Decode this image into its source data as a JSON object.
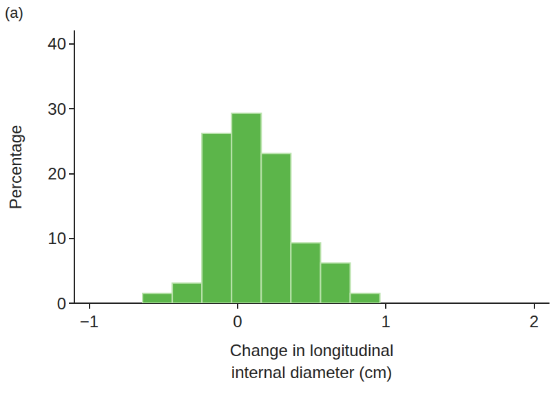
{
  "chart_data": {
    "type": "histogram",
    "title": "(a)",
    "x_label": "Change in longitudinal\ninternal diameter (cm)",
    "y_label": "Percentage",
    "bins": [
      -0.64,
      -0.44,
      -0.24,
      -0.04,
      0.16,
      0.36,
      0.56,
      0.76,
      0.96
    ],
    "values": [
      1.5,
      3.1,
      26.2,
      29.3,
      23.1,
      9.3,
      6.2,
      1.5
    ],
    "color": "#5cb54a",
    "xlim": [
      -1.1,
      2.1
    ],
    "xticks": [
      {
        "value": -1,
        "label": "−1"
      },
      0,
      1,
      2
    ],
    "ylim": [
      0,
      42
    ],
    "yticks": [
      0,
      10,
      20,
      30,
      40
    ],
    "grid": false
  }
}
